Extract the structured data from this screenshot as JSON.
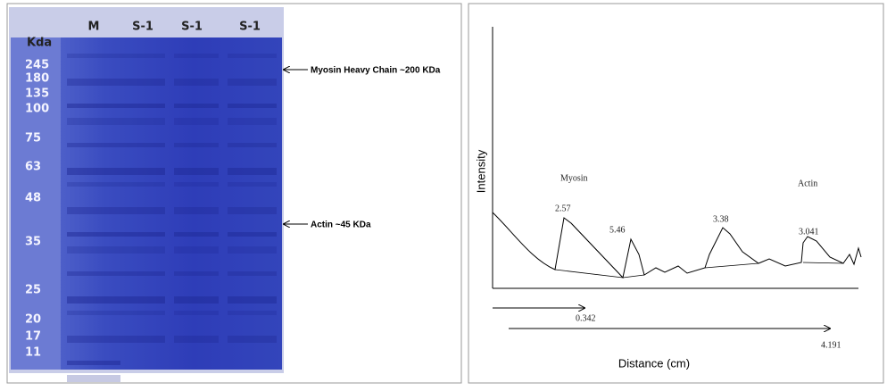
{
  "gel": {
    "kda_label": "Kda",
    "lanes": [
      "M",
      "S-1",
      "S-1",
      "S-1"
    ],
    "markers": [
      "245",
      "180",
      "135",
      "100",
      "75",
      "63",
      "48",
      "35",
      "25",
      "20",
      "17",
      "11"
    ],
    "annotations": [
      "Myosin Heavy Chain ~200 KDa",
      "Actin ~45 KDa"
    ]
  },
  "densitometry": {
    "y_label": "Intensity",
    "x_label": "Distance (cm)",
    "band_labels": [
      "Myosin",
      "Actin"
    ],
    "peak_labels": [
      "2.57",
      "5.46",
      "3.38",
      "3.041"
    ],
    "distances": [
      "0.342",
      "4.191"
    ]
  }
}
